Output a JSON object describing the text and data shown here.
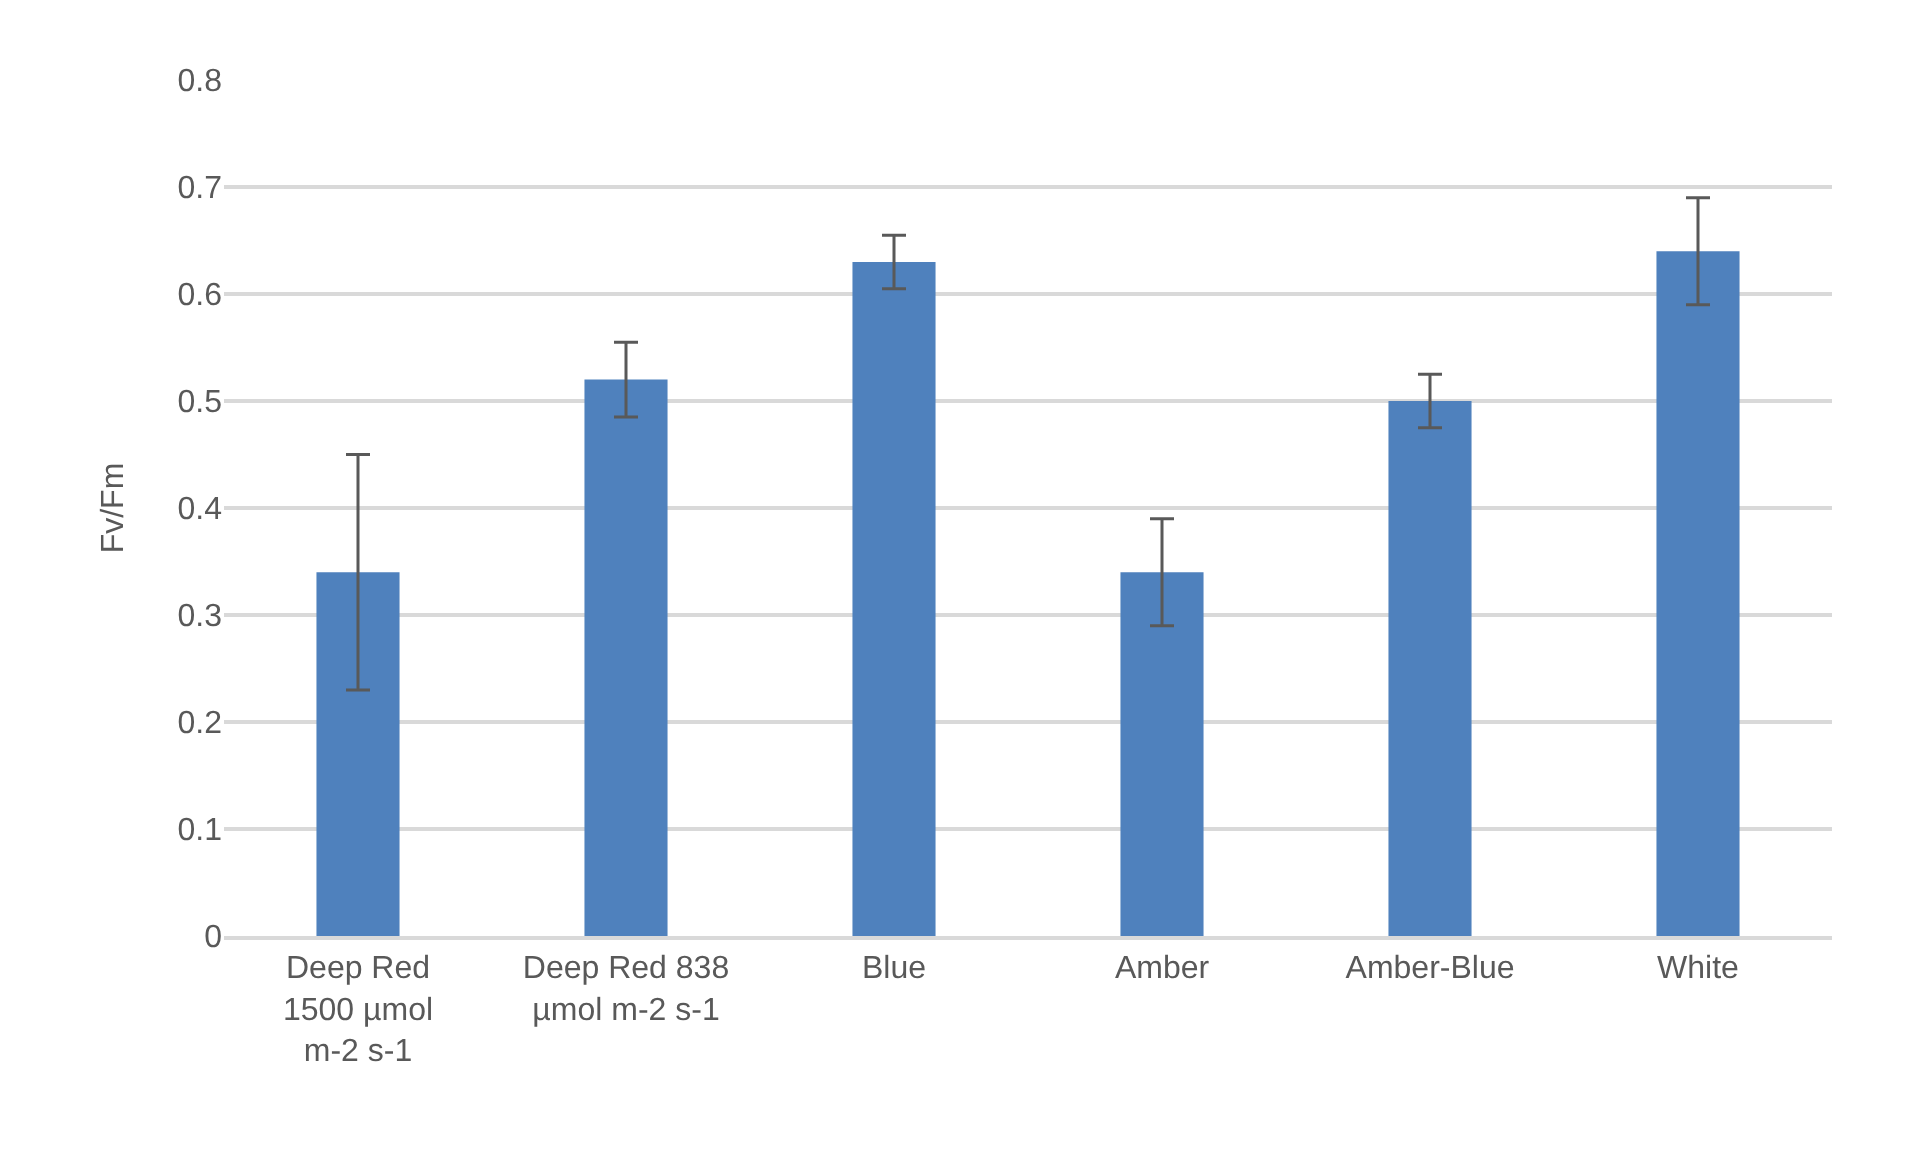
{
  "chart_data": {
    "type": "bar",
    "ylabel": "Fv/Fm",
    "categories": [
      "Deep Red 1500 µmol m-2 s-1",
      "Deep Red 838 µmol m-2 s-1",
      "Blue",
      "Amber",
      "Amber-Blue",
      "White"
    ],
    "values": [
      0.34,
      0.52,
      0.63,
      0.34,
      0.5,
      0.64
    ],
    "errors": [
      [
        0.23,
        0.45
      ],
      [
        0.485,
        0.555
      ],
      [
        0.605,
        0.655
      ],
      [
        0.29,
        0.39
      ],
      [
        0.475,
        0.525
      ],
      [
        0.59,
        0.69
      ]
    ],
    "color": "#4f81bd",
    "ylim": [
      0,
      0.8
    ],
    "yticks": [
      0,
      0.1,
      0.2,
      0.3,
      0.4,
      0.5,
      0.6,
      0.7,
      0.8
    ],
    "grid": "y"
  }
}
